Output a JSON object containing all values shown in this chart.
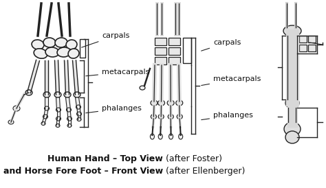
{
  "title_line1_bold": "Human Hand – Top View",
  "title_line1_normal": " (after Foster)",
  "title_line2_bold": "Dog and Horse Fore Foot – Front View",
  "title_line2_normal": " (after Ellenberger)",
  "bg_color": "#ffffff",
  "text_color": "#111111",
  "fig_width": 4.74,
  "fig_height": 2.74,
  "dpi": 100,
  "caption_fontsize": 9.0,
  "label_fontsize": 8.0
}
